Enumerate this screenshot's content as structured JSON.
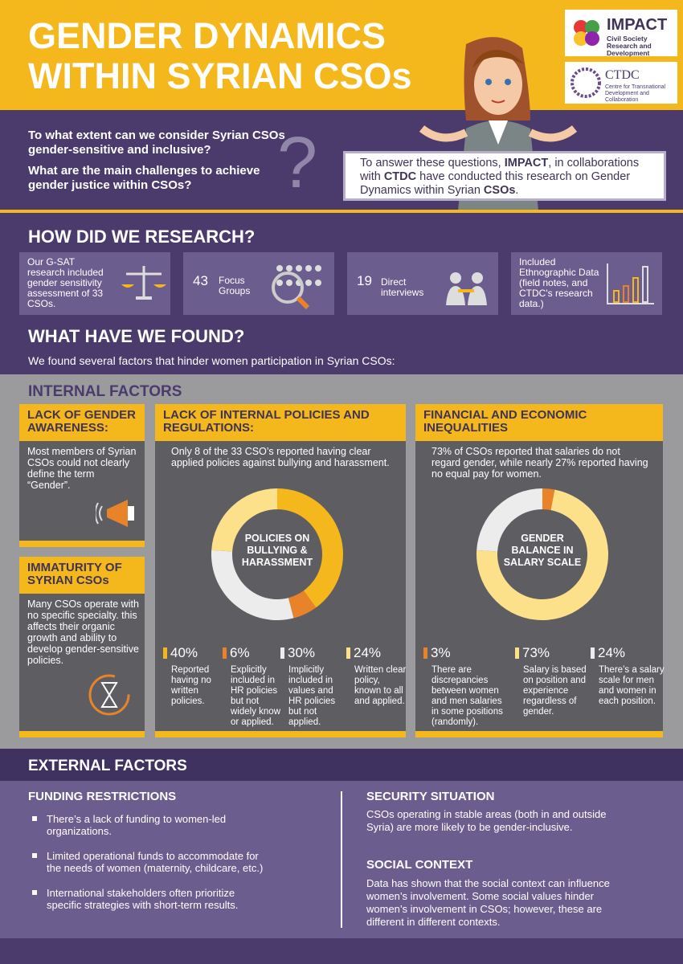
{
  "header": {
    "title_lines": [
      "GENDER DYNAMICS",
      "WITHIN SYRIAN CSOs"
    ],
    "logos": [
      {
        "name": "IMPACT",
        "tagline": "Civil Society Research and Development"
      },
      {
        "name": "CTDC",
        "tagline": "Centre for Transnational Development and Collaboration"
      }
    ]
  },
  "intro": {
    "questions": [
      "To what extent can we consider Syrian CSOs gender-sensitive and inclusive?",
      "What are the main challenges to achieve gender justice within CSOs?"
    ],
    "mark": "?",
    "answer_parts": [
      "To answer these questions, ",
      "IMPACT",
      ", in collaborations with ",
      "CTDC",
      " have conducted this research on Gender Dynamics within Syrian ",
      "CSOs",
      "."
    ]
  },
  "research": {
    "title": "HOW DID WE RESEARCH?",
    "items": [
      {
        "text": "Our G-SAT research included gender sensitivity assessment of 33 CSOs."
      },
      {
        "number": 43,
        "text": "Focus Groups"
      },
      {
        "number": 19,
        "text": "Direct interviews"
      },
      {
        "text": "Included Ethnographic Data (field notes, and CTDC's research data.)"
      }
    ]
  },
  "findings": {
    "title": "WHAT HAVE WE FOUND?",
    "intro": "We found several factors that hinder women participation in Syrian CSOs:"
  },
  "internal": {
    "title": "INTERNAL FACTORS",
    "cards": [
      {
        "title": "LACK OF GENDER AWARENESS:",
        "text": "Most members of Syrian CSOs could not clearly define the term “Gender”."
      },
      {
        "title": "IMMATURITY OF SYRIAN CSOs",
        "text": "Many CSOs operate with no specific specialty. this affects their organic growth and ability to develop gender-sensitive policies."
      },
      {
        "title": "LACK OF INTERNAL POLICIES AND REGULATIONS:",
        "text": "Only 8 of the 33 CSO’s reported having clear applied policies against bullying and harassment.",
        "chart": {
          "title": "POLICIES ON BULLYING & HARASSMENT",
          "segments": [
            {
              "value": 40,
              "label": "40%",
              "color": "#f5b81c",
              "text": "Reported having no written policies."
            },
            {
              "value": 6,
              "label": "6%",
              "color": "#e8832a",
              "text": "Explicitly included in HR policies but not widely know or applied."
            },
            {
              "value": 30,
              "label": "30%",
              "color": "#ececec",
              "text": "Implicitly included in values and HR policies but not applied."
            },
            {
              "value": 24,
              "label": "24%",
              "color": "#fde08a",
              "text": "Written clear policy, known to all and applied."
            }
          ]
        }
      },
      {
        "title": "FINANCIAL AND ECONOMIC INEQUALITIES",
        "text": "73% of CSOs reported that salaries do not regard gender, while nearly 27% reported having no equal pay for women.",
        "chart": {
          "title": "GENDER BALANCE IN SALARY SCALE",
          "segments": [
            {
              "value": 3,
              "label": "3%",
              "color": "#e8832a",
              "text": "There are discrepancies between women and men salaries in some positions (randomly)."
            },
            {
              "value": 73,
              "label": "73%",
              "color": "#fde08a",
              "text": "Salary is based on position and experience regardless of gender."
            },
            {
              "value": 24,
              "label": "24%",
              "color": "#ececec",
              "text": "There’s a salary scale for men and women in each position."
            }
          ]
        }
      }
    ]
  },
  "external": {
    "title": "EXTERNAL FACTORS",
    "funding": {
      "title": "FUNDING RESTRICTIONS",
      "bullets": [
        "There’s a lack of funding to women-led organizations.",
        "Limited operational funds to accommodate for the needs of women (maternity, childcare, etc.)",
        "International stakeholders often prioritize specific strategies with short-term results."
      ]
    },
    "security": {
      "title": "SECURITY SITUATION",
      "text": "CSOs operating in stable areas (both in and outside Syria) are more likely to be gender-inclusive."
    },
    "social": {
      "title": "SOCIAL CONTEXT",
      "text": "Data has shown that the social context can influence women’s involvement. Some social values hinder women’s involvement in CSOs; however, these are different in different contexts."
    }
  }
}
